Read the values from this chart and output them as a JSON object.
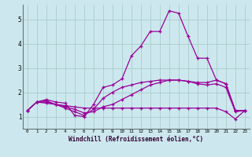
{
  "xlabel": "Windchill (Refroidissement éolien,°C)",
  "bg_color": "#cce8ee",
  "grid_color": "#aacccc",
  "line_color": "#990099",
  "xlim": [
    -0.5,
    23.5
  ],
  "ylim": [
    0.5,
    5.6
  ],
  "xticks": [
    0,
    1,
    2,
    3,
    4,
    5,
    6,
    7,
    8,
    9,
    10,
    11,
    12,
    13,
    14,
    15,
    16,
    17,
    18,
    19,
    20,
    21,
    22,
    23
  ],
  "yticks": [
    1,
    2,
    3,
    4,
    5
  ],
  "series": [
    [
      1.25,
      1.6,
      1.7,
      1.6,
      1.55,
      1.05,
      1.0,
      1.5,
      2.2,
      2.3,
      2.55,
      3.5,
      3.9,
      4.5,
      4.5,
      5.35,
      5.25,
      4.3,
      3.4,
      3.4,
      2.5,
      2.35,
      1.25,
      1.25
    ],
    [
      1.25,
      1.6,
      1.65,
      1.5,
      1.45,
      1.4,
      1.35,
      1.35,
      1.35,
      1.35,
      1.35,
      1.35,
      1.35,
      1.35,
      1.35,
      1.35,
      1.35,
      1.35,
      1.35,
      1.35,
      1.35,
      1.2,
      0.9,
      1.25
    ],
    [
      1.25,
      1.6,
      1.55,
      1.5,
      1.35,
      1.2,
      1.05,
      1.3,
      1.75,
      2.0,
      2.2,
      2.3,
      2.4,
      2.45,
      2.5,
      2.5,
      2.5,
      2.45,
      2.4,
      2.4,
      2.5,
      2.35,
      1.25,
      1.25
    ],
    [
      1.25,
      1.6,
      1.6,
      1.5,
      1.4,
      1.3,
      1.15,
      1.2,
      1.4,
      1.5,
      1.7,
      1.9,
      2.1,
      2.3,
      2.4,
      2.5,
      2.5,
      2.45,
      2.35,
      2.3,
      2.35,
      2.2,
      1.2,
      1.25
    ]
  ]
}
